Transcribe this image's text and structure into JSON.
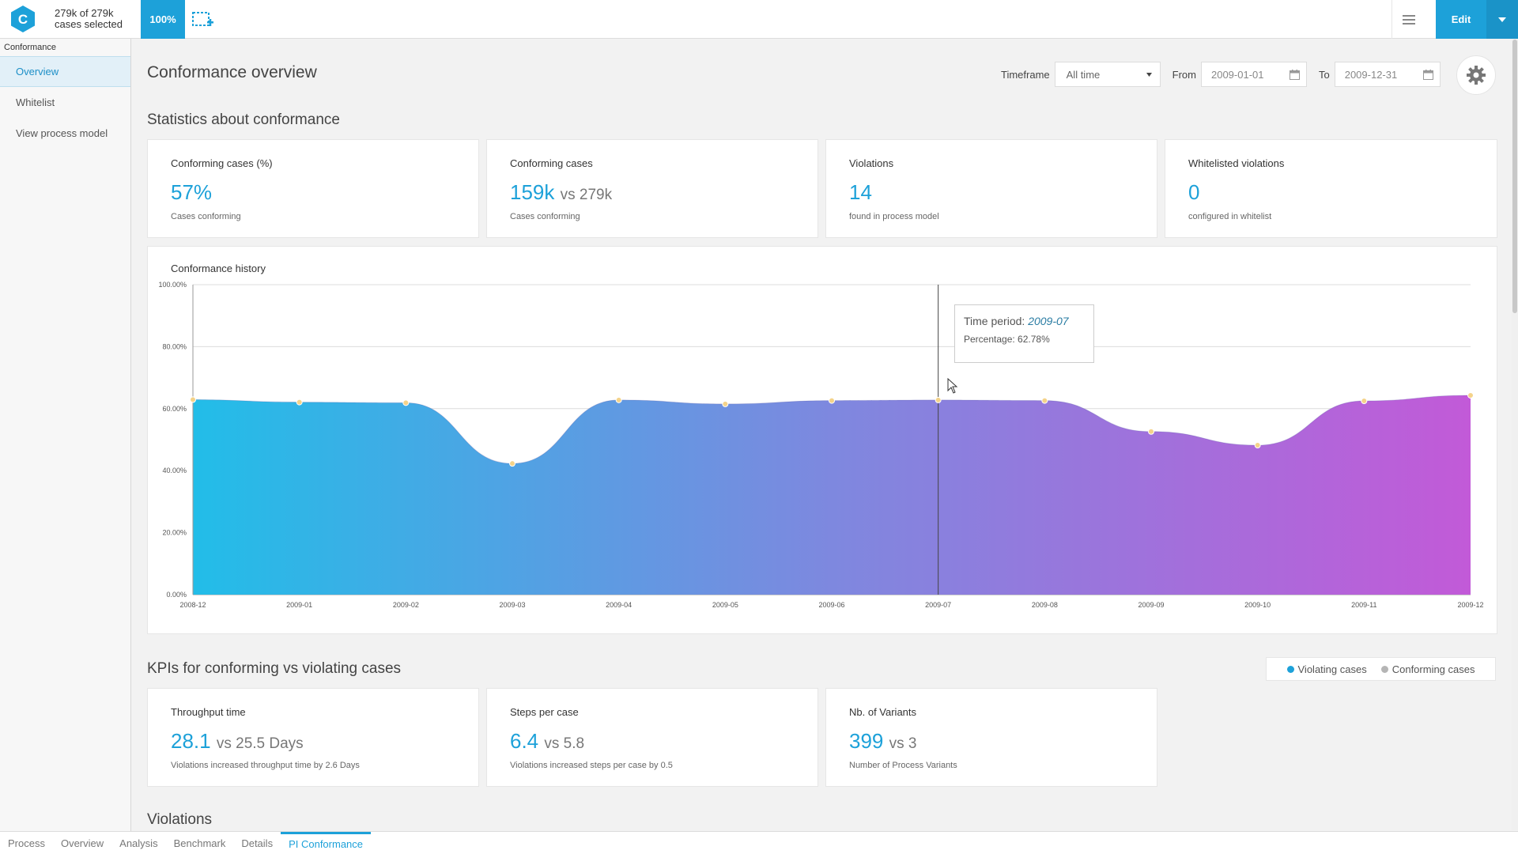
{
  "topbar": {
    "cases_line1": "279k of 279k",
    "cases_line2": "cases selected",
    "percentage_badge": "100%",
    "edit_label": "Edit",
    "brand_color": "#1da1d9"
  },
  "sidebar": {
    "header": "Conformance",
    "items": [
      {
        "label": "Overview",
        "active": true
      },
      {
        "label": "Whitelist",
        "active": false
      },
      {
        "label": "View process model",
        "active": false
      }
    ]
  },
  "page": {
    "title": "Conformance overview",
    "timeframe_label": "Timeframe",
    "timeframe_value": "All time",
    "from_label": "From",
    "from_value": "2009-01-01",
    "to_label": "To",
    "to_value": "2009-12-31"
  },
  "stats": {
    "section_title": "Statistics about conformance",
    "cards": [
      {
        "title": "Conforming cases (%)",
        "value": "57%",
        "vs": "",
        "sub": "Cases conforming"
      },
      {
        "title": "Conforming cases",
        "value": "159k",
        "vs": "vs 279k",
        "sub": "Cases conforming"
      },
      {
        "title": "Violations",
        "value": "14",
        "vs": "",
        "sub": "found in process model"
      },
      {
        "title": "Whitelisted violations",
        "value": "0",
        "vs": "",
        "sub": "configured in whitelist"
      }
    ]
  },
  "chart_data": {
    "type": "area",
    "title": "Conformance history",
    "x": [
      "2008-12",
      "2009-01",
      "2009-02",
      "2009-03",
      "2009-04",
      "2009-05",
      "2009-06",
      "2009-07",
      "2009-08",
      "2009-09",
      "2009-10",
      "2009-11",
      "2009-12"
    ],
    "values": [
      62.9,
      62.1,
      61.9,
      42.3,
      62.8,
      61.5,
      62.6,
      62.78,
      62.6,
      52.6,
      48.2,
      62.5,
      64.3
    ],
    "y_ticks": [
      "0.00%",
      "20.00%",
      "40.00%",
      "60.00%",
      "80.00%",
      "100.00%"
    ],
    "ylim": [
      0,
      100
    ],
    "grid": true,
    "gradient_colors": [
      "#22bde8",
      "#7e88df",
      "#c25ad8"
    ],
    "tooltip": {
      "period_label": "Time period:",
      "period_value": "2009-07",
      "percentage_text": "Percentage: 62.78%",
      "highlight_index": 7
    }
  },
  "kpis": {
    "section_title": "KPIs for conforming vs violating cases",
    "legend": [
      {
        "label": "Violating cases",
        "color": "#1da1d9"
      },
      {
        "label": "Conforming cases",
        "color": "#b5b5b5"
      }
    ],
    "cards": [
      {
        "title": "Throughput time",
        "value": "28.1",
        "vs": "vs 25.5 Days",
        "sub": "Violations increased throughput time by 2.6 Days"
      },
      {
        "title": "Steps per case",
        "value": "6.4",
        "vs": "vs 5.8",
        "sub": "Violations increased steps per case by 0.5"
      },
      {
        "title": "Nb. of Variants",
        "value": "399",
        "vs": "vs 3",
        "sub": "Number of Process Variants"
      }
    ]
  },
  "violations": {
    "section_title": "Violations"
  },
  "bottom_tabs": [
    {
      "label": "Process",
      "active": false
    },
    {
      "label": "Overview",
      "active": false
    },
    {
      "label": "Analysis",
      "active": false
    },
    {
      "label": "Benchmark",
      "active": false
    },
    {
      "label": "Details",
      "active": false
    },
    {
      "label": "PI Conformance",
      "active": true
    }
  ]
}
